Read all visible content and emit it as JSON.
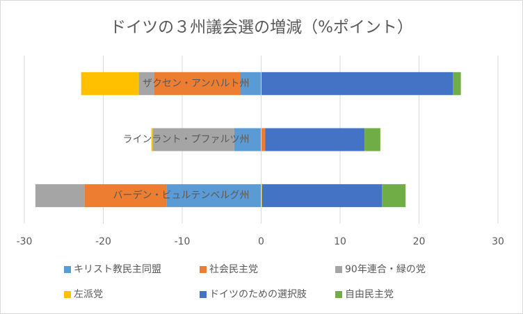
{
  "chart_data": {
    "type": "diverging-stacked-bar",
    "title": "ドイツの３州議会選の増減（%ポイント）",
    "categories": [
      "ザクセン・アンハルト州",
      "ラインラント・プファルツ州",
      "バーデン・ビュルテンベルグ州"
    ],
    "series": [
      {
        "name": "キリスト教民主同盟",
        "color": "#5b9bd5",
        "values": [
          -2.6,
          -3.4,
          -12.0
        ]
      },
      {
        "name": "社会民主党",
        "color": "#ed7d31",
        "values": [
          -11.0,
          0.5,
          -10.4
        ]
      },
      {
        "name": "90年連合・緑の党",
        "color": "#a5a5a5",
        "values": [
          -1.9,
          -10.3,
          -6.2
        ]
      },
      {
        "name": "左派党",
        "color": "#ffc000",
        "values": [
          -7.3,
          -0.2,
          0.1
        ]
      },
      {
        "name": "ドイツのための選択肢",
        "color": "#4472c4",
        "values": [
          24.3,
          12.6,
          15.2
        ]
      },
      {
        "name": "自由民主党",
        "color": "#70ad47",
        "values": [
          1.0,
          2.0,
          3.0
        ]
      }
    ],
    "xlim": [
      -30,
      30
    ],
    "xticks": [
      -30,
      -20,
      -10,
      0,
      10,
      20,
      30
    ],
    "grid": true
  }
}
